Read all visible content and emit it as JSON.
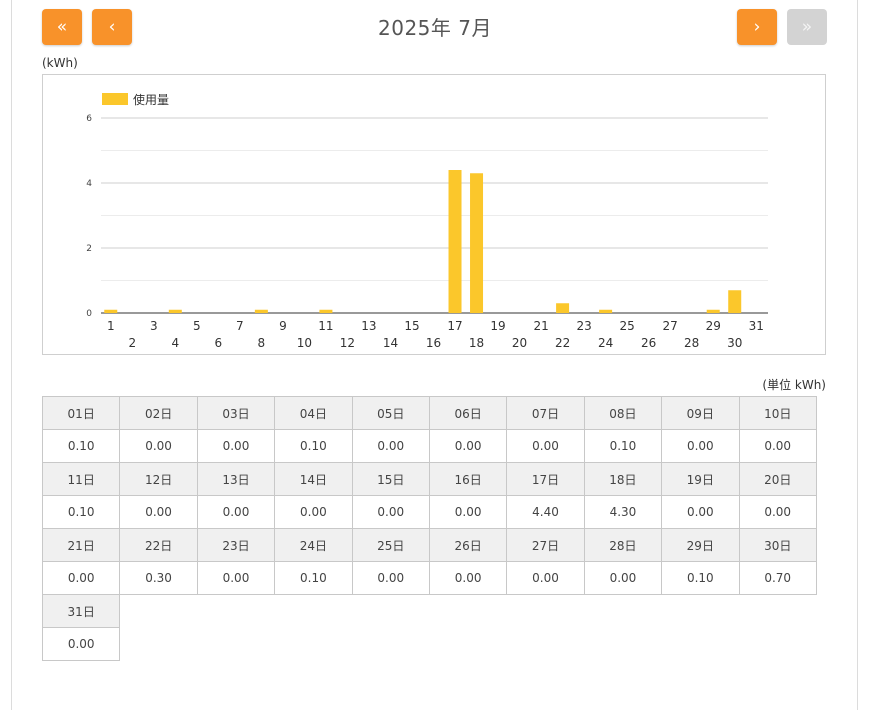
{
  "header": {
    "title": "2025年 7月",
    "first_label": "«",
    "prev_label": "‹",
    "next_label": "›",
    "last_label": "»"
  },
  "unit_top": "(kWh)",
  "unit_table": "(単位 kWh)",
  "colors": {
    "accent": "#f8922a",
    "disabled": "#d3d3d3",
    "bar": "#fbc72b"
  },
  "chart_data": {
    "type": "bar",
    "ylabel": "(kWh)",
    "ylim": [
      0,
      6
    ],
    "yticks": [
      0,
      2,
      4,
      6
    ],
    "legend": {
      "label": "使用量",
      "placement": "top-left"
    },
    "grid": true,
    "categories": [
      "1",
      "2",
      "3",
      "4",
      "5",
      "6",
      "7",
      "8",
      "9",
      "10",
      "11",
      "12",
      "13",
      "14",
      "15",
      "16",
      "17",
      "18",
      "19",
      "20",
      "21",
      "22",
      "23",
      "24",
      "25",
      "26",
      "27",
      "28",
      "29",
      "30",
      "31"
    ],
    "series": [
      {
        "name": "使用量",
        "color": "#fbc72b",
        "values": [
          0.1,
          0.0,
          0.0,
          0.1,
          0.0,
          0.0,
          0.0,
          0.1,
          0.0,
          0.0,
          0.1,
          0.0,
          0.0,
          0.0,
          0.0,
          0.0,
          4.4,
          4.3,
          0.0,
          0.0,
          0.0,
          0.3,
          0.0,
          0.1,
          0.0,
          0.0,
          0.0,
          0.0,
          0.1,
          0.7,
          0.0
        ]
      }
    ]
  },
  "table": {
    "days": [
      "01日",
      "02日",
      "03日",
      "04日",
      "05日",
      "06日",
      "07日",
      "08日",
      "09日",
      "10日",
      "11日",
      "12日",
      "13日",
      "14日",
      "15日",
      "16日",
      "17日",
      "18日",
      "19日",
      "20日",
      "21日",
      "22日",
      "23日",
      "24日",
      "25日",
      "26日",
      "27日",
      "28日",
      "29日",
      "30日",
      "31日"
    ],
    "values": [
      "0.10",
      "0.00",
      "0.00",
      "0.10",
      "0.00",
      "0.00",
      "0.00",
      "0.10",
      "0.00",
      "0.00",
      "0.10",
      "0.00",
      "0.00",
      "0.00",
      "0.00",
      "0.00",
      "4.40",
      "4.30",
      "0.00",
      "0.00",
      "0.00",
      "0.30",
      "0.00",
      "0.10",
      "0.00",
      "0.00",
      "0.00",
      "0.00",
      "0.10",
      "0.70",
      "0.00"
    ]
  }
}
